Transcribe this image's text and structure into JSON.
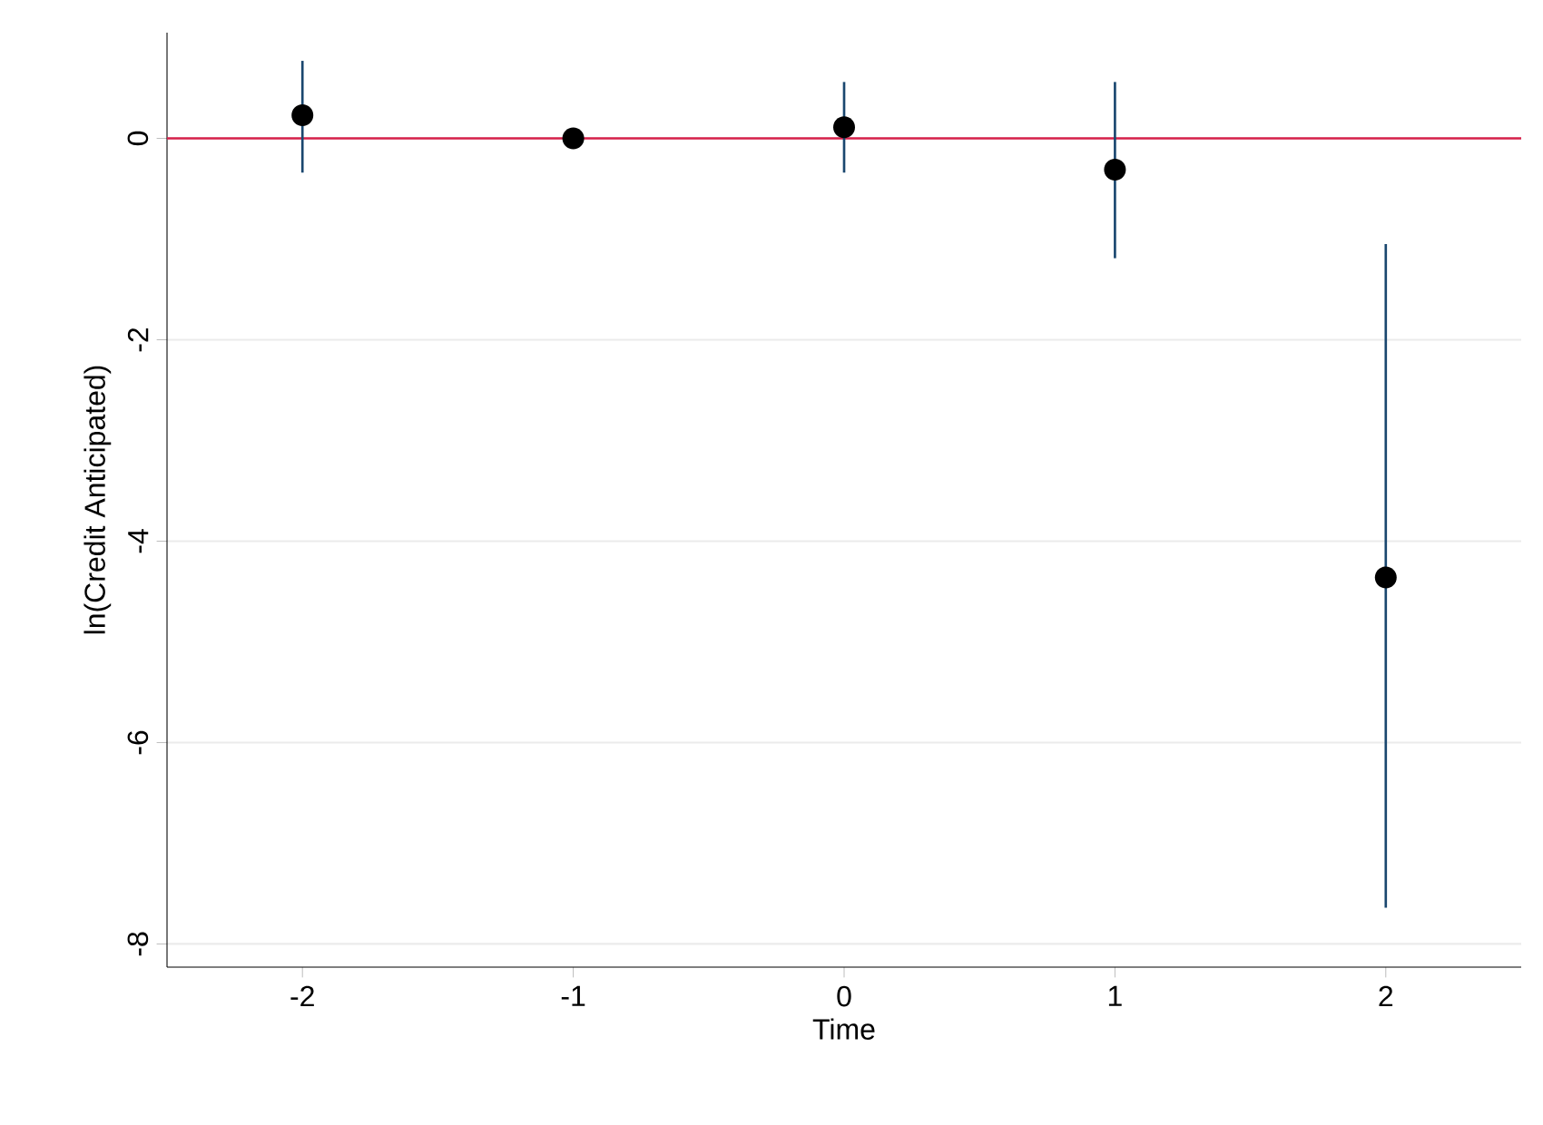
{
  "chart_data": {
    "type": "scatter",
    "xlabel": "Time",
    "ylabel": "ln(Credit Anticipated)",
    "x": [
      -2,
      -1,
      0,
      1,
      2
    ],
    "values": [
      0.23,
      0.0,
      0.11,
      -0.31,
      -4.36
    ],
    "errors": [
      [
        -0.34,
        0.77
      ],
      null,
      [
        -0.34,
        0.56
      ],
      [
        -1.19,
        0.56
      ],
      [
        -7.64,
        -1.05
      ]
    ],
    "color": "#000000",
    "marker": "circle",
    "xlim": [
      -2.5,
      2.5
    ],
    "ylim": [
      -8.23,
      1.05
    ],
    "xticks": [
      -2,
      -1,
      0,
      1,
      2
    ],
    "yticks": [
      -8,
      -6,
      -4,
      -2,
      0
    ],
    "grid": "y",
    "ref_lines": [
      {
        "axis": "y",
        "value": 0,
        "color": "#d6204a"
      }
    ]
  }
}
